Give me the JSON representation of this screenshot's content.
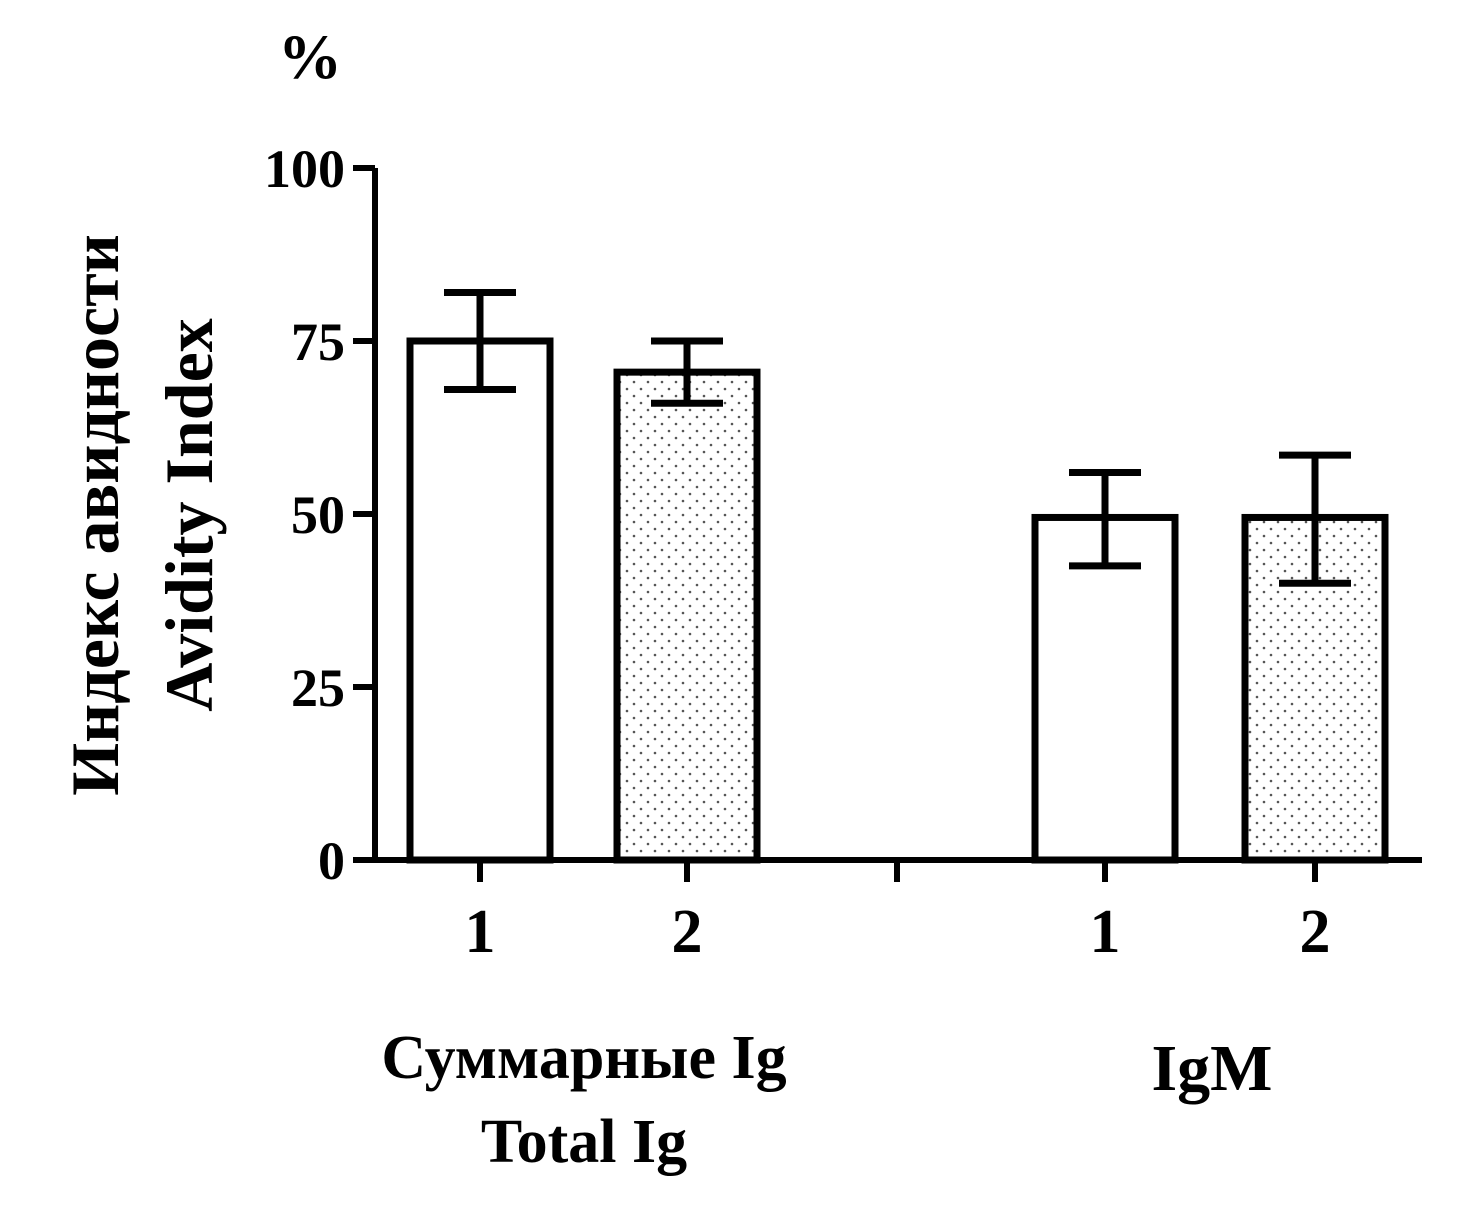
{
  "chart_data": {
    "type": "bar",
    "unit_label": "%",
    "ylabel_line1": "Индекс авидности",
    "ylabel_line2": "Avidity Index",
    "ylim": [
      0,
      100
    ],
    "yticks": [
      0,
      25,
      50,
      75,
      100
    ],
    "grid": false,
    "groups": [
      {
        "label_line1": "Суммарные Ig",
        "label_line2": "Total Ig",
        "bars": [
          {
            "category": "1",
            "value": 75,
            "err_low": 68,
            "err_high": 82,
            "pattern": "open"
          },
          {
            "category": "2",
            "value": 70.5,
            "err_low": 66,
            "err_high": 75,
            "pattern": "dotted"
          }
        ]
      },
      {
        "label_line1": "IgM",
        "label_line2": "",
        "bars": [
          {
            "category": "1",
            "value": 49.5,
            "err_low": 42.5,
            "err_high": 56,
            "pattern": "open"
          },
          {
            "category": "2",
            "value": 49.5,
            "err_low": 40,
            "err_high": 58.5,
            "pattern": "dotted"
          }
        ]
      }
    ],
    "colors": {
      "ink": "#000000",
      "fill": "#ffffff",
      "dot": "#555555"
    }
  }
}
